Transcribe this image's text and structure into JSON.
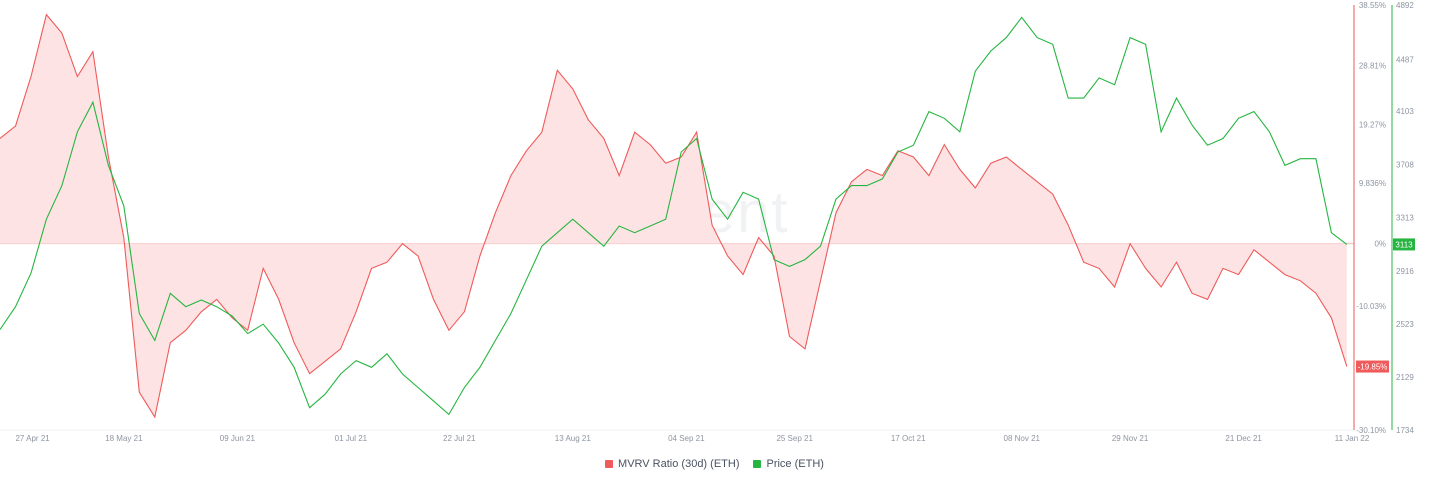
{
  "watermark": "santiment",
  "colors": {
    "mvrv": "#ef5a5a",
    "mvrv_fill": "#fde3e3",
    "price": "#26b540",
    "grid": "#eef0f3"
  },
  "chart_data": {
    "type": "line",
    "x_ticks": [
      "27 Apr 21",
      "18 May 21",
      "09 Jun 21",
      "01 Jul 21",
      "22 Jul 21",
      "13 Aug 21",
      "04 Sep 21",
      "25 Sep 21",
      "17 Oct 21",
      "08 Nov 21",
      "29 Nov 21",
      "21 Dec 21",
      "11 Jan 22"
    ],
    "y_left_ticks": [
      "38.55%",
      "28.81%",
      "19.27%",
      "9.836%",
      "0%",
      "-10.03%",
      "-19.85%",
      "-30.10%"
    ],
    "y_right_ticks": [
      "4892",
      "4487",
      "4103",
      "3708",
      "3313",
      "2916",
      "2523",
      "2129",
      "1734"
    ],
    "current_values": {
      "mvrv": "-19.85%",
      "price": "3113"
    },
    "ylim_left": [
      -30.1,
      38.55
    ],
    "ylim_right": [
      1734,
      4892
    ],
    "series": [
      {
        "name": "MVRV Ratio (30d) (ETH)",
        "axis": "left",
        "x": [
          "2021-04-24",
          "2021-04-27",
          "2021-04-30",
          "2021-05-03",
          "2021-05-06",
          "2021-05-09",
          "2021-05-12",
          "2021-05-15",
          "2021-05-18",
          "2021-05-21",
          "2021-05-24",
          "2021-05-27",
          "2021-05-30",
          "2021-06-02",
          "2021-06-05",
          "2021-06-08",
          "2021-06-11",
          "2021-06-14",
          "2021-06-17",
          "2021-06-20",
          "2021-06-23",
          "2021-06-26",
          "2021-06-29",
          "2021-07-02",
          "2021-07-05",
          "2021-07-08",
          "2021-07-11",
          "2021-07-14",
          "2021-07-17",
          "2021-07-20",
          "2021-07-23",
          "2021-07-26",
          "2021-07-29",
          "2021-08-01",
          "2021-08-04",
          "2021-08-07",
          "2021-08-10",
          "2021-08-13",
          "2021-08-16",
          "2021-08-19",
          "2021-08-22",
          "2021-08-25",
          "2021-08-28",
          "2021-08-31",
          "2021-09-03",
          "2021-09-06",
          "2021-09-09",
          "2021-09-12",
          "2021-09-15",
          "2021-09-18",
          "2021-09-21",
          "2021-09-24",
          "2021-09-27",
          "2021-09-30",
          "2021-10-03",
          "2021-10-06",
          "2021-10-09",
          "2021-10-12",
          "2021-10-15",
          "2021-10-18",
          "2021-10-21",
          "2021-10-24",
          "2021-10-27",
          "2021-10-30",
          "2021-11-02",
          "2021-11-05",
          "2021-11-08",
          "2021-11-11",
          "2021-11-14",
          "2021-11-17",
          "2021-11-20",
          "2021-11-23",
          "2021-11-26",
          "2021-11-29",
          "2021-12-02",
          "2021-12-05",
          "2021-12-08",
          "2021-12-11",
          "2021-12-14",
          "2021-12-17",
          "2021-12-20",
          "2021-12-23",
          "2021-12-26",
          "2021-12-29",
          "2022-01-01",
          "2022-01-04",
          "2022-01-07",
          "2022-01-10"
        ],
        "values": [
          17,
          19,
          27,
          37,
          34,
          27,
          31,
          14,
          1,
          -24,
          -28,
          -16,
          -14,
          -11,
          -9,
          -12,
          -14,
          -4,
          -9,
          -16,
          -21,
          -19,
          -17,
          -11,
          -4,
          -3,
          0,
          -2,
          -9,
          -14,
          -11,
          -2,
          5,
          11,
          15,
          18,
          28,
          25,
          20,
          17,
          11,
          18,
          16,
          13,
          14,
          18,
          3,
          -2,
          -5,
          1,
          -2,
          -15,
          -17,
          -6,
          5,
          10,
          12,
          11,
          15,
          14,
          11,
          16,
          12,
          9,
          13,
          14,
          12,
          10,
          8,
          3,
          -3,
          -4,
          -7,
          0,
          -4,
          -7,
          -3,
          -8,
          -9,
          -4,
          -5,
          -1,
          -3,
          -5,
          -6,
          -8,
          -12,
          -19.85
        ]
      },
      {
        "name": "Price (ETH)",
        "axis": "right",
        "x": [
          "2021-04-24",
          "2021-04-27",
          "2021-04-30",
          "2021-05-03",
          "2021-05-06",
          "2021-05-09",
          "2021-05-12",
          "2021-05-15",
          "2021-05-18",
          "2021-05-21",
          "2021-05-24",
          "2021-05-27",
          "2021-05-30",
          "2021-06-02",
          "2021-06-05",
          "2021-06-08",
          "2021-06-11",
          "2021-06-14",
          "2021-06-17",
          "2021-06-20",
          "2021-06-23",
          "2021-06-26",
          "2021-06-29",
          "2021-07-02",
          "2021-07-05",
          "2021-07-08",
          "2021-07-11",
          "2021-07-14",
          "2021-07-17",
          "2021-07-20",
          "2021-07-23",
          "2021-07-26",
          "2021-07-29",
          "2021-08-01",
          "2021-08-04",
          "2021-08-07",
          "2021-08-10",
          "2021-08-13",
          "2021-08-16",
          "2021-08-19",
          "2021-08-22",
          "2021-08-25",
          "2021-08-28",
          "2021-08-31",
          "2021-09-03",
          "2021-09-06",
          "2021-09-09",
          "2021-09-12",
          "2021-09-15",
          "2021-09-18",
          "2021-09-21",
          "2021-09-24",
          "2021-09-27",
          "2021-09-30",
          "2021-10-03",
          "2021-10-06",
          "2021-10-09",
          "2021-10-12",
          "2021-10-15",
          "2021-10-18",
          "2021-10-21",
          "2021-10-24",
          "2021-10-27",
          "2021-10-30",
          "2021-11-02",
          "2021-11-05",
          "2021-11-08",
          "2021-11-11",
          "2021-11-14",
          "2021-11-17",
          "2021-11-20",
          "2021-11-23",
          "2021-11-26",
          "2021-11-29",
          "2021-12-02",
          "2021-12-05",
          "2021-12-08",
          "2021-12-11",
          "2021-12-14",
          "2021-12-17",
          "2021-12-20",
          "2021-12-23",
          "2021-12-26",
          "2021-12-29",
          "2022-01-01",
          "2022-01-04",
          "2022-01-07",
          "2022-01-10"
        ],
        "values": [
          2480,
          2650,
          2900,
          3300,
          3550,
          3950,
          4170,
          3700,
          3400,
          2600,
          2400,
          2750,
          2650,
          2700,
          2650,
          2580,
          2450,
          2520,
          2380,
          2200,
          1900,
          2000,
          2150,
          2250,
          2200,
          2300,
          2150,
          2050,
          1950,
          1850,
          2050,
          2200,
          2400,
          2600,
          2850,
          3100,
          3200,
          3300,
          3200,
          3100,
          3250,
          3200,
          3250,
          3300,
          3800,
          3900,
          3450,
          3300,
          3500,
          3450,
          3000,
          2950,
          3000,
          3100,
          3450,
          3550,
          3550,
          3600,
          3800,
          3850,
          4100,
          4050,
          3950,
          4400,
          4550,
          4650,
          4800,
          4650,
          4600,
          4200,
          4200,
          4350,
          4300,
          4650,
          4600,
          3950,
          4200,
          4000,
          3850,
          3900,
          4050,
          4100,
          3950,
          3700,
          3750,
          3750,
          3200,
          3113
        ]
      }
    ]
  }
}
